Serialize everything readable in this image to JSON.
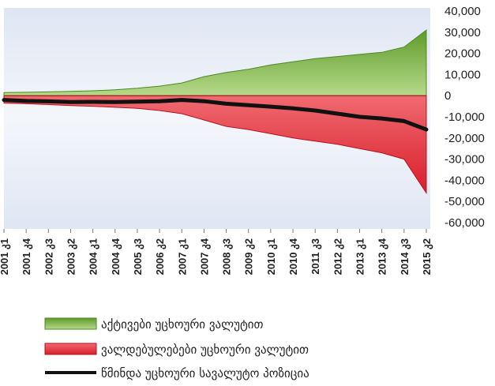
{
  "chart_data": {
    "type": "area",
    "categories": [
      "2001 კ1",
      "2001 კ4",
      "2002 კ3",
      "2003 კ2",
      "2004 კ1",
      "2004 კ4",
      "2005 კ3",
      "2006 კ2",
      "2007 კ1",
      "2007 კ4",
      "2008 კ3",
      "2009 კ2",
      "2010 კ1",
      "2010 კ4",
      "2011 კ3",
      "2012 კ2",
      "2013 კ1",
      "2013 კ4",
      "2014 კ3",
      "2015 კ2"
    ],
    "series": [
      {
        "name": "აქტივები უცხოური ვალუტით",
        "type": "area",
        "color": "#7bb33e",
        "values": [
          1500,
          1600,
          1800,
          2000,
          2300,
          2800,
          3500,
          4500,
          6000,
          9000,
          11000,
          12500,
          14500,
          16000,
          17500,
          18500,
          19500,
          20500,
          23000,
          31000
        ]
      },
      {
        "name": "ვალდებულებები უცხოური ვალუტით",
        "type": "area",
        "color": "#e8323a",
        "values": [
          -3500,
          -3800,
          -4200,
          -4700,
          -5000,
          -5500,
          -6000,
          -7000,
          -8500,
          -11500,
          -14500,
          -16000,
          -18000,
          -20000,
          -21500,
          -23000,
          -25000,
          -27000,
          -30000,
          -46000
        ]
      },
      {
        "name": "წმინდა უცხოური სავალუტო პოზიცია",
        "type": "line",
        "color": "#111111",
        "values": [
          -2000,
          -2500,
          -2700,
          -3000,
          -2900,
          -3000,
          -2800,
          -2600,
          -2000,
          -2600,
          -3800,
          -4500,
          -5200,
          -6000,
          -7000,
          -8500,
          -10000,
          -10800,
          -12000,
          -16000
        ]
      }
    ],
    "y_ticks": [
      "40,000",
      "30,000",
      "20,000",
      "10,000",
      "0",
      "-10,000",
      "-20,000",
      "-30,000",
      "-40,000",
      "-50,000",
      "-60,000"
    ],
    "ylim": [
      -60000,
      40000
    ],
    "grid": false,
    "legend_position": "bottom"
  }
}
